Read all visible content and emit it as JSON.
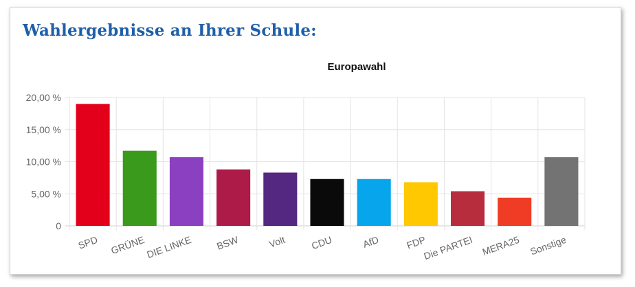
{
  "page": {
    "heading": "Wahlergebnisse an Ihrer Schule:"
  },
  "chart_data": {
    "type": "bar",
    "title": "Europawahl",
    "xlabel": "",
    "ylabel": "",
    "ylim": [
      0,
      20
    ],
    "yticks": [
      0,
      5,
      10,
      15,
      20
    ],
    "ytick_labels": [
      "0",
      "5,00 %",
      "10,00 %",
      "15,00 %",
      "20,00 %"
    ],
    "grid": true,
    "legend": false,
    "categories": [
      "SPD",
      "GRÜNE",
      "DIE LINKE",
      "BSW",
      "Volt",
      "CDU",
      "AfD",
      "FDP",
      "Die PARTEI",
      "MERA25",
      "Sonstige"
    ],
    "values": [
      19.0,
      11.7,
      10.7,
      8.8,
      8.3,
      7.3,
      7.3,
      6.8,
      5.4,
      4.4,
      10.7
    ],
    "colors": [
      "#e3001b",
      "#399a1c",
      "#8b3fc1",
      "#ad1c49",
      "#542780",
      "#0a0a0a",
      "#07a6ec",
      "#ffc800",
      "#b82d3d",
      "#f03c25",
      "#737373"
    ]
  }
}
